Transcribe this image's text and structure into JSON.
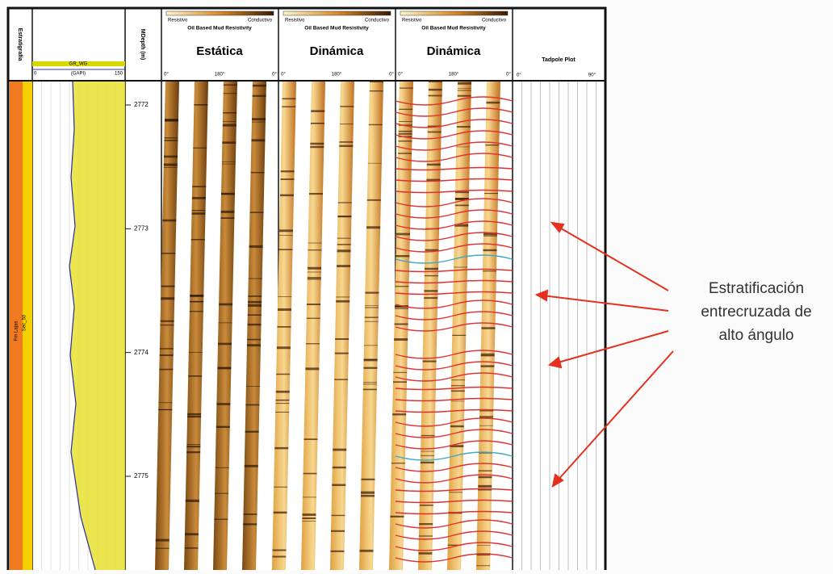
{
  "strat_track": {
    "header": "Estratigrafía",
    "sequence": "Sec_50",
    "formation": "Fm Lajas"
  },
  "gr_track": {
    "curve": "GR_WG",
    "scale_min": "0",
    "unit": "(GAPI)",
    "scale_max": "150"
  },
  "depth_track": {
    "header": "MDepth (m)",
    "ticks": [
      2772,
      2773,
      2774,
      2775
    ]
  },
  "image_tracks": [
    {
      "legend_left": "Resistivo",
      "legend_right": "Conductivo",
      "subtitle": "Oil Based Mud Resistivity",
      "title": "Estática",
      "azimuths": [
        "0°",
        "180°",
        "0°"
      ]
    },
    {
      "legend_left": "Resistivo",
      "legend_right": "Conductivo",
      "subtitle": "Oil Based Mud Resistivity",
      "title": "Dinámica",
      "azimuths": [
        "0°",
        "180°",
        "0°"
      ]
    },
    {
      "legend_left": "Resistivo",
      "legend_right": "Conductivo",
      "subtitle": "Oil Based Mud Resistivity",
      "title": "Dinámica",
      "azimuths": [
        "0°",
        "180°",
        "0°"
      ]
    }
  ],
  "tadpole_track": {
    "header": "Tadpole Plot",
    "scale_min": "0°",
    "scale_max": "90°"
  },
  "annotation": {
    "lines": [
      "Estratificación",
      "entrecruzada de",
      "alto ángulo"
    ]
  }
}
